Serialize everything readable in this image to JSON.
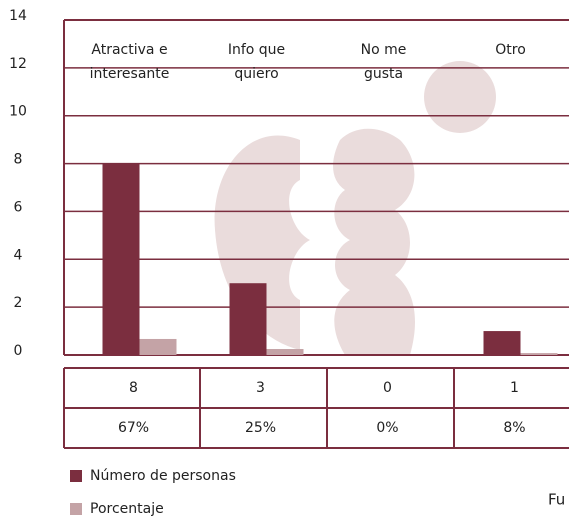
{
  "chart_data": {
    "type": "bar",
    "categories": [
      "Atractiva e\ninteresante",
      "Info que\nquiero",
      "No me\ngusta",
      "Otro"
    ],
    "series": [
      {
        "name": "Número de personas",
        "color": "#7b2e3f",
        "values": [
          8,
          3,
          0,
          1
        ]
      },
      {
        "name": "Porcentaje",
        "color": "#c4a3a6",
        "values": [
          0.67,
          0.25,
          0,
          0.08
        ],
        "value_labels": [
          "67%",
          "25%",
          "0%",
          "8%"
        ]
      }
    ],
    "ylim": [
      0,
      14
    ],
    "yticks": [
      0,
      2,
      4,
      6,
      8,
      10,
      12,
      14
    ],
    "grid": true,
    "note": "Fu"
  }
}
